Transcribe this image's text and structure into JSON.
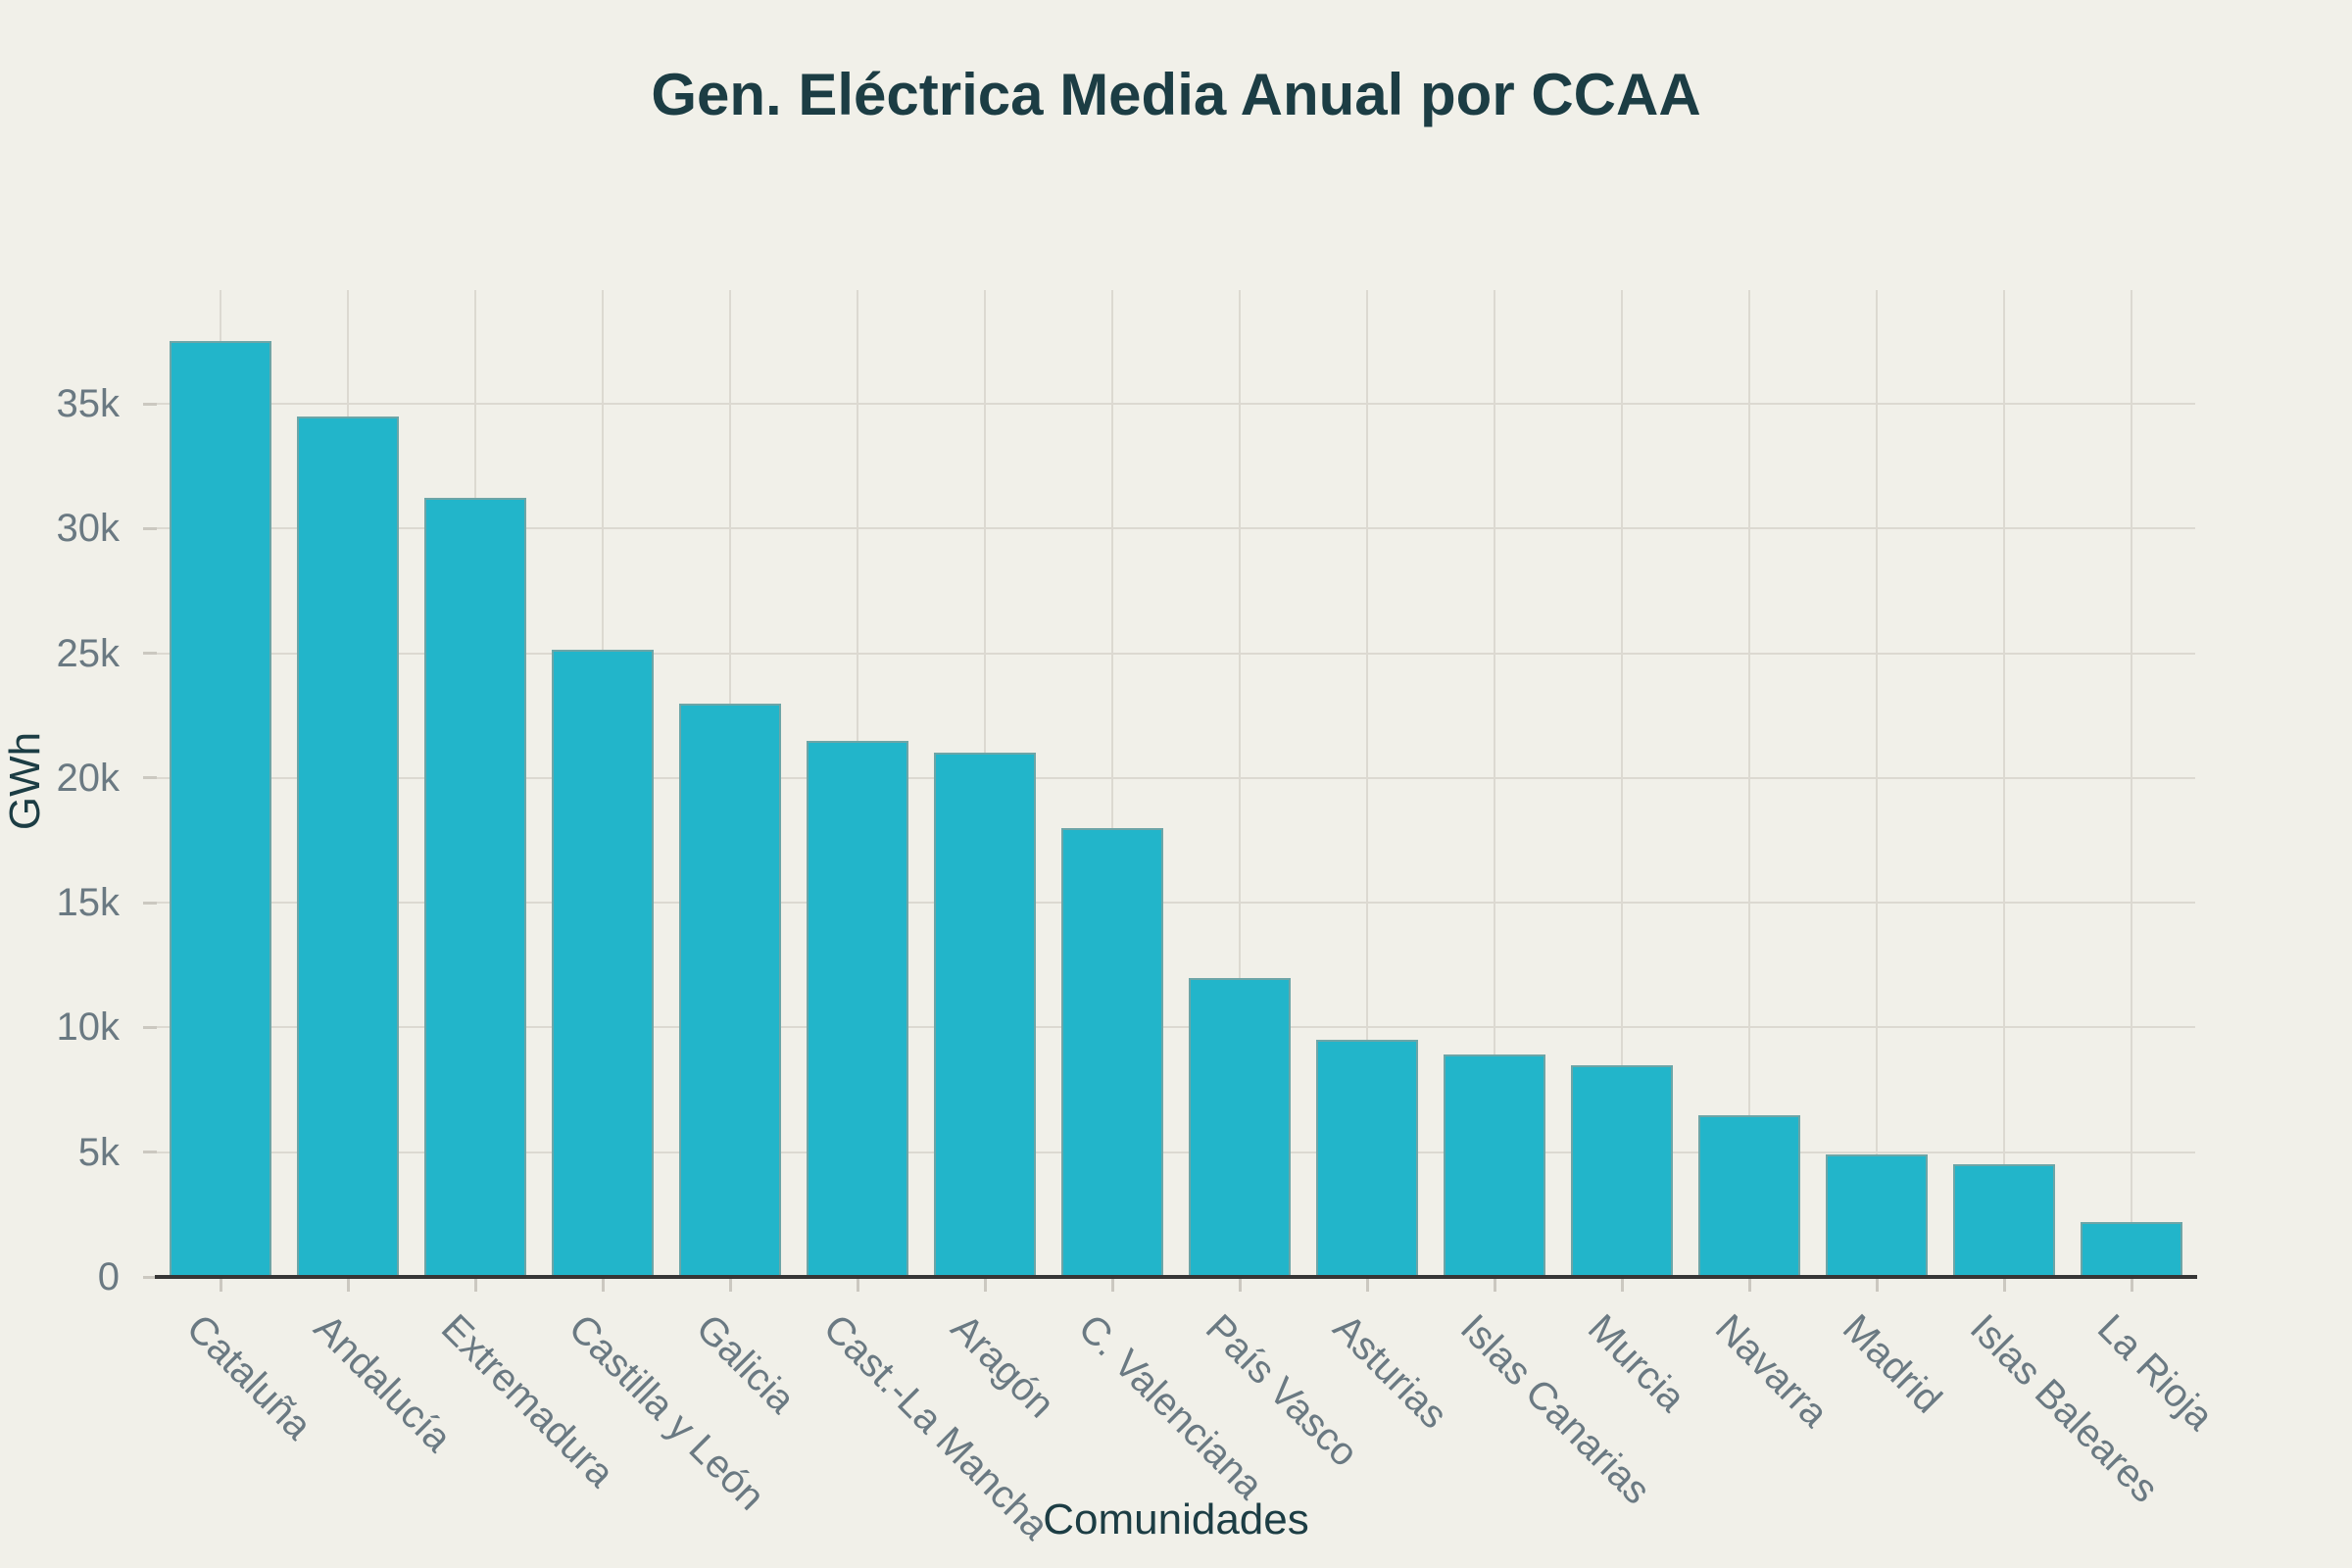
{
  "title": "Gen. Eléctrica Media Anual por CCAA",
  "colors": {
    "background": "#f1f0e9",
    "bar_fill": "#22b5ca",
    "bar_outline": "#969c94",
    "gridline": "#dcd9d1",
    "axis_line": "#363636",
    "tick_label_text": "#6a7982",
    "title_text": "#1c3d44"
  },
  "chart_data": {
    "type": "bar",
    "title": "Gen. Eléctrica Media Anual por CCAA",
    "xlabel": "Comunidades",
    "ylabel": "GWh",
    "categories": [
      "Cataluña",
      "Andalucía",
      "Extremadura",
      "Castilla y León",
      "Galicia",
      "Cast.-La Mancha",
      "Aragón",
      "C. Valenciana",
      "País Vasco",
      "Asturias",
      "Islas Canarias",
      "Murcia",
      "Navarra",
      "Madrid",
      "Islas Baleares",
      "La Rioja"
    ],
    "values": [
      37500,
      34500,
      31250,
      25150,
      23000,
      21500,
      21000,
      18000,
      12000,
      9500,
      8900,
      8500,
      6500,
      4900,
      4500,
      2200
    ],
    "unit": "GWh",
    "ylim": [
      0,
      39560
    ],
    "yticks": [
      0,
      5000,
      10000,
      15000,
      20000,
      25000,
      30000,
      35000
    ],
    "ytick_labels": [
      "0",
      "5k",
      "10k",
      "15k",
      "20k",
      "25k",
      "30k",
      "35k"
    ],
    "xtick_angle_deg": 45,
    "grid": true,
    "legend": false
  }
}
